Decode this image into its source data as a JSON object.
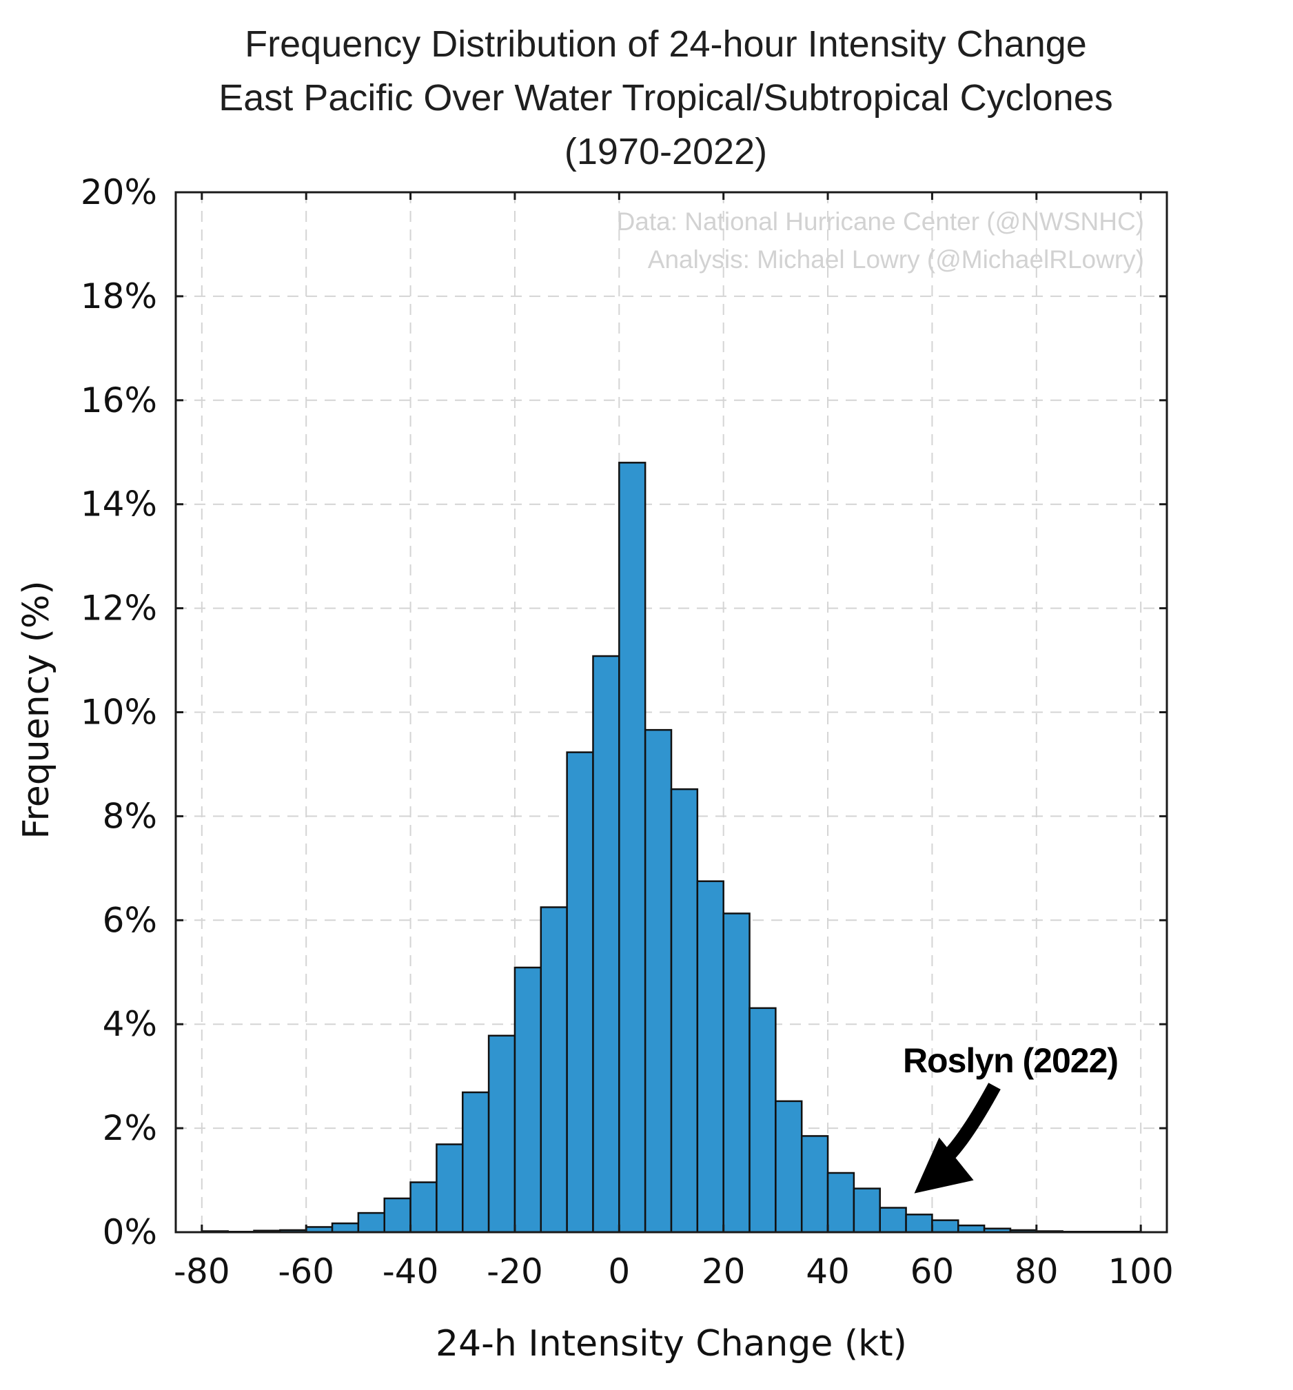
{
  "chart_data": {
    "type": "bar",
    "title": [
      "Frequency Distribution of 24-hour Intensity Change",
      "East Pacific Over Water Tropical/Subtropical Cyclones",
      "(1970-2022)"
    ],
    "xlabel": "24-h Intensity Change (kt)",
    "ylabel": "Frequency (%)",
    "xlim": [
      -85,
      105
    ],
    "ylim": [
      0,
      20
    ],
    "xticks": [
      -80,
      -60,
      -40,
      -20,
      0,
      20,
      40,
      60,
      80,
      100
    ],
    "xtick_labels": [
      "-80",
      "-60",
      "-40",
      "-20",
      "0",
      "20",
      "40",
      "60",
      "80",
      "100"
    ],
    "yticks": [
      0,
      2,
      4,
      6,
      8,
      10,
      12,
      14,
      16,
      18,
      20
    ],
    "ytick_labels": [
      "0%",
      "2%",
      "4%",
      "6%",
      "8%",
      "10%",
      "12%",
      "14%",
      "16%",
      "18%",
      "20%"
    ],
    "grid": true,
    "bar_color": "#3094cf",
    "bin_width": 5,
    "bin_left_edges": [
      -80,
      -75,
      -70,
      -65,
      -60,
      -55,
      -50,
      -45,
      -40,
      -35,
      -30,
      -25,
      -20,
      -15,
      -10,
      -5,
      0,
      5,
      10,
      15,
      20,
      25,
      30,
      35,
      40,
      45,
      50,
      55,
      60,
      65,
      70,
      75,
      80,
      85,
      90,
      95
    ],
    "values": [
      0.02,
      0.01,
      0.03,
      0.04,
      0.1,
      0.17,
      0.37,
      0.65,
      0.96,
      1.69,
      2.69,
      3.78,
      5.09,
      6.25,
      9.23,
      11.08,
      14.8,
      9.66,
      8.52,
      6.75,
      6.13,
      4.31,
      2.52,
      1.85,
      1.14,
      0.84,
      0.47,
      0.34,
      0.23,
      0.13,
      0.07,
      0.04,
      0.02,
      0.01,
      0.01,
      0.01
    ],
    "annotations": {
      "credits": [
        "Data: National Hurricane Center (@NWSNHC)",
        "Analysis: Michael Lowry (@MichaelRLowry)"
      ],
      "callout": {
        "text": "Roslyn (2022)",
        "target_x": 55,
        "target_y": 0.8
      }
    }
  }
}
